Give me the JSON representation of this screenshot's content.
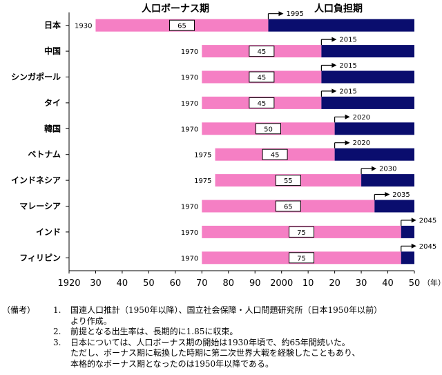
{
  "chart_data": {
    "type": "bar",
    "subtype": "horizontal-timeline",
    "legend": {
      "bonus_label": "人口ボーナス期",
      "burden_label": "人口負担期"
    },
    "colors": {
      "bonus": "#f57fc4",
      "burden": "#0a0d6e"
    },
    "x_ticks": [
      "1920",
      "30",
      "40",
      "50",
      "60",
      "70",
      "80",
      "90",
      "2000",
      "10",
      "20",
      "30",
      "40",
      "50"
    ],
    "x_unit": "（年）",
    "xlim": [
      1920,
      2050
    ],
    "grid": false,
    "rows": [
      {
        "country": "日本",
        "start": 1930,
        "start_label": "1930",
        "end": 1995,
        "end_label": "1995",
        "duration": "65"
      },
      {
        "country": "中国",
        "start": 1970,
        "start_label": "1970",
        "end": 2015,
        "end_label": "2015",
        "duration": "45"
      },
      {
        "country": "シンガポール",
        "start": 1970,
        "start_label": "1970",
        "end": 2015,
        "end_label": "2015",
        "duration": "45"
      },
      {
        "country": "タイ",
        "start": 1970,
        "start_label": "1970",
        "end": 2015,
        "end_label": "2015",
        "duration": "45"
      },
      {
        "country": "韓国",
        "start": 1970,
        "start_label": "1970",
        "end": 2020,
        "end_label": "2020",
        "duration": "50"
      },
      {
        "country": "ベトナム",
        "start": 1975,
        "start_label": "1975",
        "end": 2020,
        "end_label": "2020",
        "duration": "45"
      },
      {
        "country": "インドネシア",
        "start": 1975,
        "start_label": "1975",
        "end": 2030,
        "end_label": "2030",
        "duration": "55"
      },
      {
        "country": "マレーシア",
        "start": 1970,
        "start_label": "1970",
        "end": 2035,
        "end_label": "2035",
        "duration": "65"
      },
      {
        "country": "インド",
        "start": 1970,
        "start_label": "1970",
        "end": 2045,
        "end_label": "2045",
        "duration": "75"
      },
      {
        "country": "フィリピン",
        "start": 1970,
        "start_label": "1970",
        "end": 2045,
        "end_label": "2045",
        "duration": "75"
      }
    ]
  },
  "notes": {
    "label": "（備考）",
    "items": [
      {
        "num": "1.",
        "lines": [
          "国連人口推計（1950年以降）、国立社会保障・人口問題研究所（日本1950年以前）",
          "より作成。"
        ]
      },
      {
        "num": "2.",
        "lines": [
          "前提となる出生率は、長期的に1.85に収束。"
        ]
      },
      {
        "num": "3.",
        "lines": [
          "日本については、人口ボーナス期の開始は1930年頃で、約65年間続いた。",
          "ただし、ボーナス期に転換した時期に第二次世界大戦を経験したこともあり、",
          "本格的なボーナス期となったのは1950年以降である。"
        ]
      }
    ]
  }
}
